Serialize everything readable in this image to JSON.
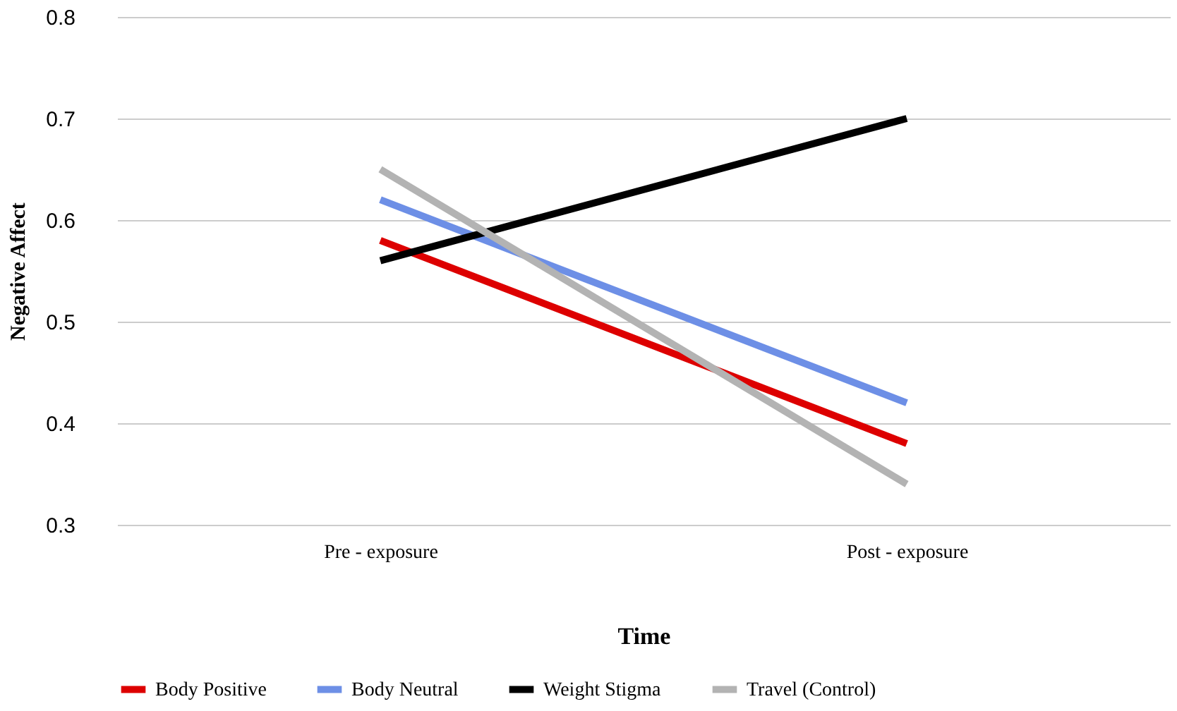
{
  "chart_data": {
    "type": "line",
    "xlabel": "Time",
    "ylabel": "Negative Affect",
    "categories": [
      "Pre - exposure",
      "Post - exposure"
    ],
    "series": [
      {
        "name": "Body Positive",
        "color": "#dd0000",
        "values": [
          0.58,
          0.38
        ]
      },
      {
        "name": "Body Neutral",
        "color": "#6d8fe6",
        "values": [
          0.62,
          0.42
        ]
      },
      {
        "name": "Weight Stigma",
        "color": "#000000",
        "values": [
          0.56,
          0.7
        ]
      },
      {
        "name": "Travel (Control)",
        "color": "#b3b3b3",
        "values": [
          0.65,
          0.34
        ]
      }
    ],
    "ylim": [
      0.3,
      0.8
    ],
    "yticks": [
      0.3,
      0.4,
      0.5,
      0.6,
      0.7,
      0.8
    ],
    "grid": "y",
    "legend": "bottom",
    "marker": "none",
    "line_style": "solid"
  }
}
